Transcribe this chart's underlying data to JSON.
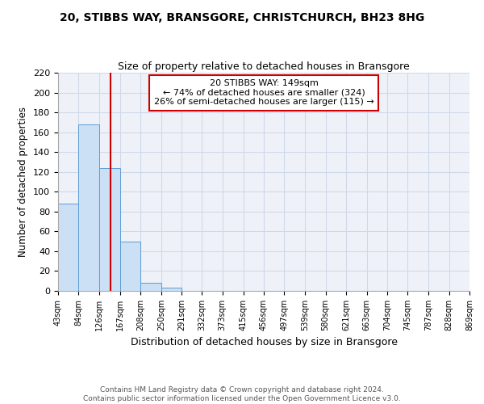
{
  "title": "20, STIBBS WAY, BRANSGORE, CHRISTCHURCH, BH23 8HG",
  "subtitle": "Size of property relative to detached houses in Bransgore",
  "xlabel": "Distribution of detached houses by size in Bransgore",
  "ylabel": "Number of detached properties",
  "footer_line1": "Contains HM Land Registry data © Crown copyright and database right 2024.",
  "footer_line2": "Contains public sector information licensed under the Open Government Licence v3.0.",
  "bin_labels": [
    "43sqm",
    "84sqm",
    "126sqm",
    "167sqm",
    "208sqm",
    "250sqm",
    "291sqm",
    "332sqm",
    "373sqm",
    "415sqm",
    "456sqm",
    "497sqm",
    "539sqm",
    "580sqm",
    "621sqm",
    "663sqm",
    "704sqm",
    "745sqm",
    "787sqm",
    "828sqm",
    "869sqm"
  ],
  "bar_values": [
    88,
    168,
    124,
    50,
    8,
    3,
    0,
    0,
    0,
    0,
    0,
    0,
    0,
    0,
    0,
    0,
    0,
    0,
    0,
    0
  ],
  "bar_color": "#cce0f5",
  "bar_edge_color": "#5b9bd5",
  "annotation_text": "20 STIBBS WAY: 149sqm\n← 74% of detached houses are smaller (324)\n26% of semi-detached houses are larger (115) →",
  "annotation_box_edge_color": "#cc0000",
  "vline_x": 149,
  "vline_color": "#cc0000",
  "ylim": [
    0,
    220
  ],
  "yticks": [
    0,
    20,
    40,
    60,
    80,
    100,
    120,
    140,
    160,
    180,
    200,
    220
  ],
  "grid_color": "#d0d8e8",
  "background_color": "#eef2f8",
  "bin_edges": [
    43,
    84,
    126,
    167,
    208,
    250,
    291,
    332,
    373,
    415,
    456,
    497,
    539,
    580,
    621,
    663,
    704,
    745,
    787,
    828,
    869
  ]
}
